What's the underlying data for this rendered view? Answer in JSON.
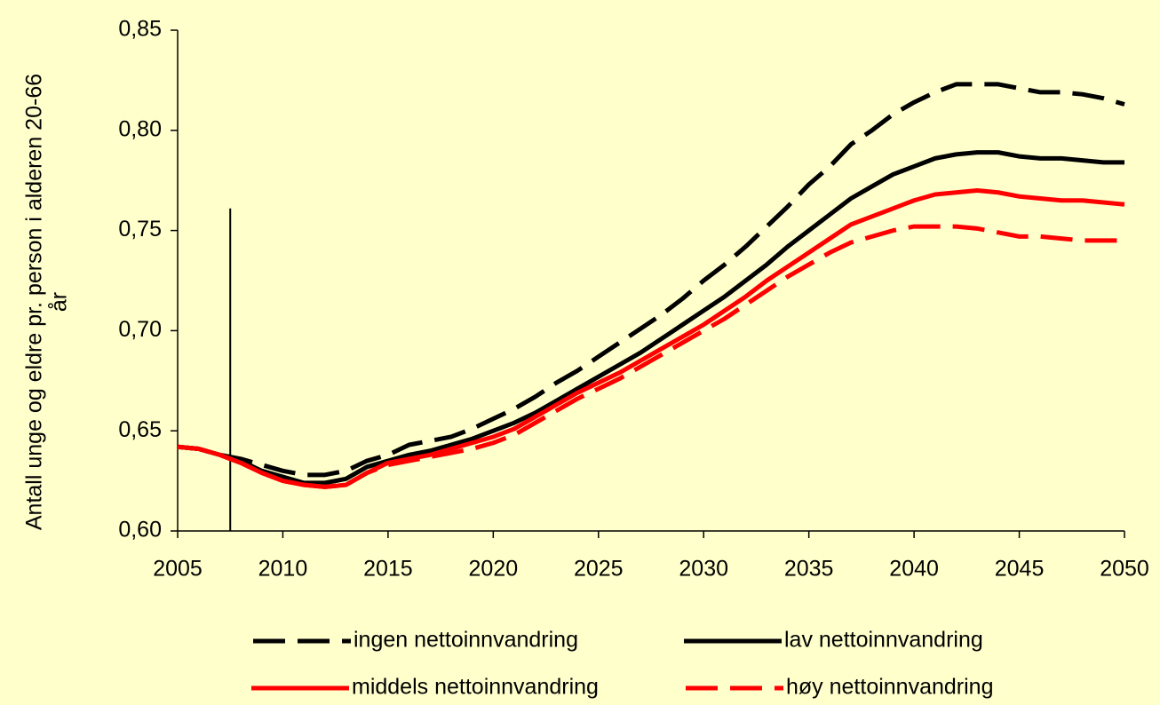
{
  "chart_data": {
    "type": "line",
    "ylabel": [
      "Antall unge og eldre pr. person i alderen 20-66",
      "år"
    ],
    "x": [
      2005,
      2006,
      2007,
      2008,
      2009,
      2010,
      2011,
      2012,
      2013,
      2014,
      2015,
      2016,
      2017,
      2018,
      2019,
      2020,
      2021,
      2022,
      2023,
      2024,
      2025,
      2026,
      2027,
      2028,
      2029,
      2030,
      2031,
      2032,
      2033,
      2034,
      2035,
      2036,
      2037,
      2038,
      2039,
      2040,
      2041,
      2042,
      2043,
      2044,
      2045,
      2046,
      2047,
      2048,
      2049,
      2050
    ],
    "series": [
      {
        "name": "ingen nettoinnvandring",
        "color": "#000000",
        "dash": true,
        "values": [
          0.642,
          0.641,
          0.638,
          0.636,
          0.633,
          0.63,
          0.628,
          0.628,
          0.63,
          0.635,
          0.638,
          0.643,
          0.645,
          0.647,
          0.651,
          0.656,
          0.661,
          0.667,
          0.674,
          0.68,
          0.687,
          0.694,
          0.701,
          0.708,
          0.716,
          0.725,
          0.733,
          0.742,
          0.752,
          0.762,
          0.773,
          0.782,
          0.793,
          0.8,
          0.808,
          0.814,
          0.819,
          0.823,
          0.823,
          0.823,
          0.821,
          0.819,
          0.819,
          0.818,
          0.816,
          0.813
        ]
      },
      {
        "name": "lav nettoinnvandring",
        "color": "#000000",
        "dash": false,
        "values": [
          0.642,
          0.641,
          0.638,
          0.635,
          0.63,
          0.627,
          0.624,
          0.624,
          0.626,
          0.632,
          0.635,
          0.638,
          0.64,
          0.643,
          0.646,
          0.65,
          0.654,
          0.659,
          0.665,
          0.671,
          0.677,
          0.683,
          0.689,
          0.696,
          0.703,
          0.71,
          0.717,
          0.725,
          0.733,
          0.742,
          0.75,
          0.758,
          0.766,
          0.772,
          0.778,
          0.782,
          0.786,
          0.788,
          0.789,
          0.789,
          0.787,
          0.786,
          0.786,
          0.785,
          0.784,
          0.784
        ]
      },
      {
        "name": "middels nettoinnvandring",
        "color": "#ff0000",
        "dash": false,
        "values": [
          0.642,
          0.641,
          0.638,
          0.634,
          0.629,
          0.625,
          0.623,
          0.622,
          0.623,
          0.629,
          0.634,
          0.636,
          0.638,
          0.641,
          0.644,
          0.647,
          0.651,
          0.657,
          0.663,
          0.669,
          0.674,
          0.679,
          0.685,
          0.691,
          0.697,
          0.703,
          0.71,
          0.717,
          0.725,
          0.732,
          0.739,
          0.746,
          0.753,
          0.757,
          0.761,
          0.765,
          0.768,
          0.769,
          0.77,
          0.769,
          0.767,
          0.766,
          0.765,
          0.765,
          0.764,
          0.763
        ]
      },
      {
        "name": "høy nettoinnvandring",
        "color": "#ff0000",
        "dash": true,
        "values": [
          0.642,
          0.641,
          0.638,
          0.634,
          0.629,
          0.625,
          0.623,
          0.622,
          0.623,
          0.629,
          0.633,
          0.635,
          0.637,
          0.639,
          0.641,
          0.644,
          0.648,
          0.654,
          0.66,
          0.666,
          0.671,
          0.676,
          0.682,
          0.688,
          0.694,
          0.7,
          0.706,
          0.713,
          0.72,
          0.727,
          0.733,
          0.739,
          0.744,
          0.747,
          0.75,
          0.752,
          0.752,
          0.752,
          0.751,
          0.749,
          0.747,
          0.747,
          0.746,
          0.745,
          0.745,
          0.745
        ]
      }
    ],
    "vertical_line": {
      "x": 2007.5,
      "y": [
        0.6,
        0.761
      ]
    },
    "xlim": [
      2005,
      2050
    ],
    "xticks": [
      2005,
      2010,
      2015,
      2020,
      2025,
      2030,
      2035,
      2040,
      2045,
      2050
    ],
    "ylim": [
      0.6,
      0.85
    ],
    "yticks": [
      {
        "value": 0.6,
        "label": "0,60"
      },
      {
        "value": 0.65,
        "label": "0,65"
      },
      {
        "value": 0.7,
        "label": "0,70"
      },
      {
        "value": 0.75,
        "label": "0,75"
      },
      {
        "value": 0.8,
        "label": "0,80"
      },
      {
        "value": 0.85,
        "label": "0,85"
      }
    ],
    "grid": false,
    "background": "#ffffcc"
  }
}
